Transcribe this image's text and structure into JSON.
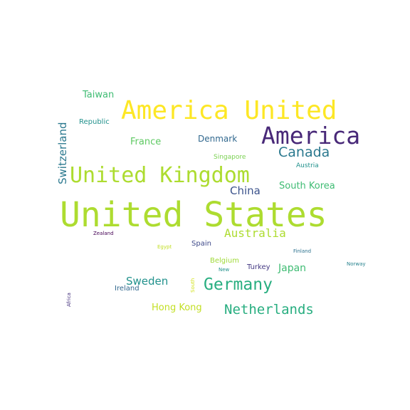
{
  "word_cloud": {
    "words": [
      {
        "text": "United States",
        "color": "#addc30"
      },
      {
        "text": "America United",
        "color": "#fde725"
      },
      {
        "text": "America",
        "color": "#482878"
      },
      {
        "text": "United Kingdom",
        "color": "#addc30"
      },
      {
        "text": "Canada",
        "color": "#2a788e"
      },
      {
        "text": "Germany",
        "color": "#28ae80"
      },
      {
        "text": "Netherlands",
        "color": "#28ae80"
      },
      {
        "text": "Australia",
        "color": "#addc30"
      },
      {
        "text": "China",
        "color": "#3b528b"
      },
      {
        "text": "South Korea",
        "color": "#3fbc73"
      },
      {
        "text": "Switzerland",
        "color": "#2a788e"
      },
      {
        "text": "Taiwan",
        "color": "#3fbc73"
      },
      {
        "text": "France",
        "color": "#5ec962"
      },
      {
        "text": "Denmark",
        "color": "#31688e"
      },
      {
        "text": "Republic",
        "color": "#21918c"
      },
      {
        "text": "Singapore",
        "color": "#7ad151"
      },
      {
        "text": "Austria",
        "color": "#21918c"
      },
      {
        "text": "Sweden",
        "color": "#21918c"
      },
      {
        "text": "Japan",
        "color": "#3fbc73"
      },
      {
        "text": "Hong Kong",
        "color": "#c2df23"
      },
      {
        "text": "Spain",
        "color": "#3e4989"
      },
      {
        "text": "Belgium",
        "color": "#a0da39"
      },
      {
        "text": "Turkey",
        "color": "#443983"
      },
      {
        "text": "Ireland",
        "color": "#31688e"
      },
      {
        "text": "Zealand",
        "color": "#440154"
      },
      {
        "text": "Egypt",
        "color": "#c2df23"
      },
      {
        "text": "Finland",
        "color": "#2c728e"
      },
      {
        "text": "Norway",
        "color": "#26828e"
      },
      {
        "text": "New",
        "color": "#21918c"
      },
      {
        "text": "South",
        "color": "#d2e21b"
      },
      {
        "text": "Africa",
        "color": "#46327e"
      }
    ]
  }
}
